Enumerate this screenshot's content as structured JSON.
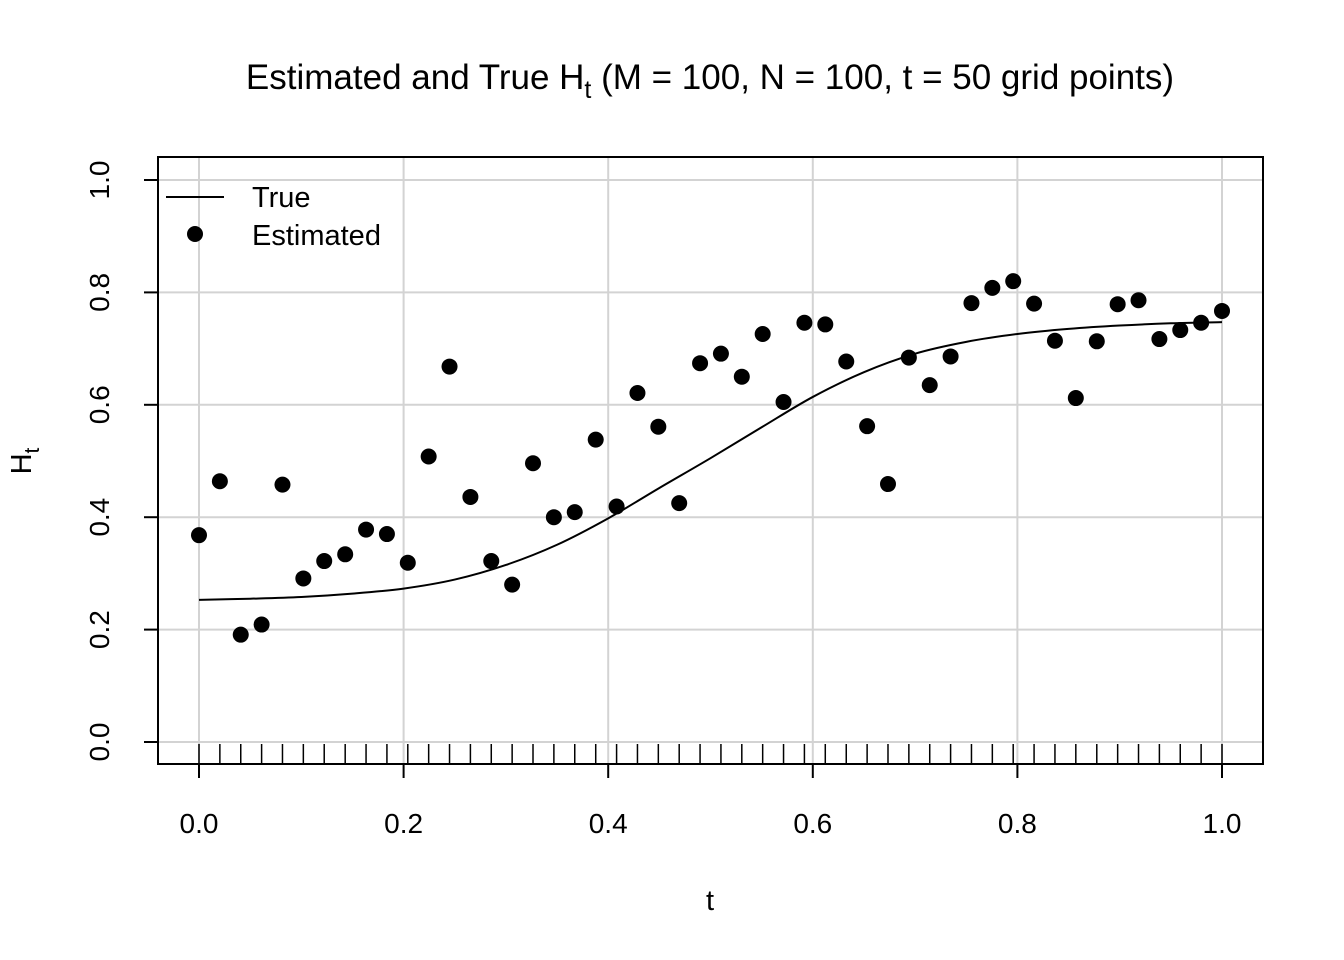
{
  "chart_data": {
    "type": "scatter",
    "title": {
      "prefix": "Estimated and True H",
      "subscript": "t",
      "suffix": " (M = 100, N = 100, t = 50 grid points)"
    },
    "xlabel": "t",
    "ylabel": {
      "main": "H",
      "subscript": "t"
    },
    "xlim": [
      0,
      1
    ],
    "ylim": [
      0,
      1
    ],
    "x_ticks": [
      0.0,
      0.2,
      0.4,
      0.6,
      0.8,
      1.0
    ],
    "x_tick_labels": [
      "0.0",
      "0.2",
      "0.4",
      "0.6",
      "0.8",
      "1.0"
    ],
    "y_ticks": [
      0.0,
      0.2,
      0.4,
      0.6,
      0.8,
      1.0
    ],
    "y_tick_labels": [
      "0.0",
      "0.2",
      "0.4",
      "0.6",
      "0.8",
      "1.0"
    ],
    "grid": true,
    "rug": true,
    "legend_position": "top-left",
    "series": [
      {
        "name": "True",
        "kind": "line",
        "color": "#000000",
        "x": [
          0.0,
          0.05,
          0.1,
          0.15,
          0.2,
          0.25,
          0.3,
          0.35,
          0.4,
          0.45,
          0.5,
          0.55,
          0.6,
          0.65,
          0.7,
          0.75,
          0.8,
          0.85,
          0.9,
          0.95,
          1.0
        ],
        "y": [
          0.253,
          0.255,
          0.258,
          0.264,
          0.273,
          0.289,
          0.315,
          0.351,
          0.398,
          0.452,
          0.505,
          0.56,
          0.614,
          0.658,
          0.691,
          0.712,
          0.726,
          0.735,
          0.741,
          0.745,
          0.747
        ]
      },
      {
        "name": "Estimated",
        "kind": "points",
        "color": "#000000",
        "x": [
          0.0,
          0.0204,
          0.0408,
          0.0612,
          0.0816,
          0.102,
          0.1224,
          0.1429,
          0.1633,
          0.1837,
          0.2041,
          0.2245,
          0.2449,
          0.2653,
          0.2857,
          0.3061,
          0.3265,
          0.3469,
          0.3673,
          0.3878,
          0.4082,
          0.4286,
          0.449,
          0.4694,
          0.4898,
          0.5102,
          0.5306,
          0.551,
          0.5714,
          0.5918,
          0.6122,
          0.6327,
          0.6531,
          0.6735,
          0.6939,
          0.7143,
          0.7347,
          0.7551,
          0.7755,
          0.7959,
          0.8163,
          0.8367,
          0.8571,
          0.8776,
          0.898,
          0.9184,
          0.9388,
          0.9592,
          0.9796,
          1.0
        ],
        "y": [
          0.368,
          0.464,
          0.191,
          0.209,
          0.458,
          0.291,
          0.322,
          0.334,
          0.378,
          0.37,
          0.319,
          0.508,
          0.668,
          0.436,
          0.322,
          0.28,
          0.496,
          0.4,
          0.409,
          0.538,
          0.419,
          0.621,
          0.561,
          0.425,
          0.674,
          0.691,
          0.65,
          0.726,
          0.605,
          0.746,
          0.743,
          0.677,
          0.562,
          0.459,
          0.684,
          0.635,
          0.686,
          0.781,
          0.808,
          0.82,
          0.78,
          0.714,
          0.612,
          0.713,
          0.779,
          0.786,
          0.717,
          0.733,
          0.746,
          0.767
        ]
      }
    ]
  }
}
